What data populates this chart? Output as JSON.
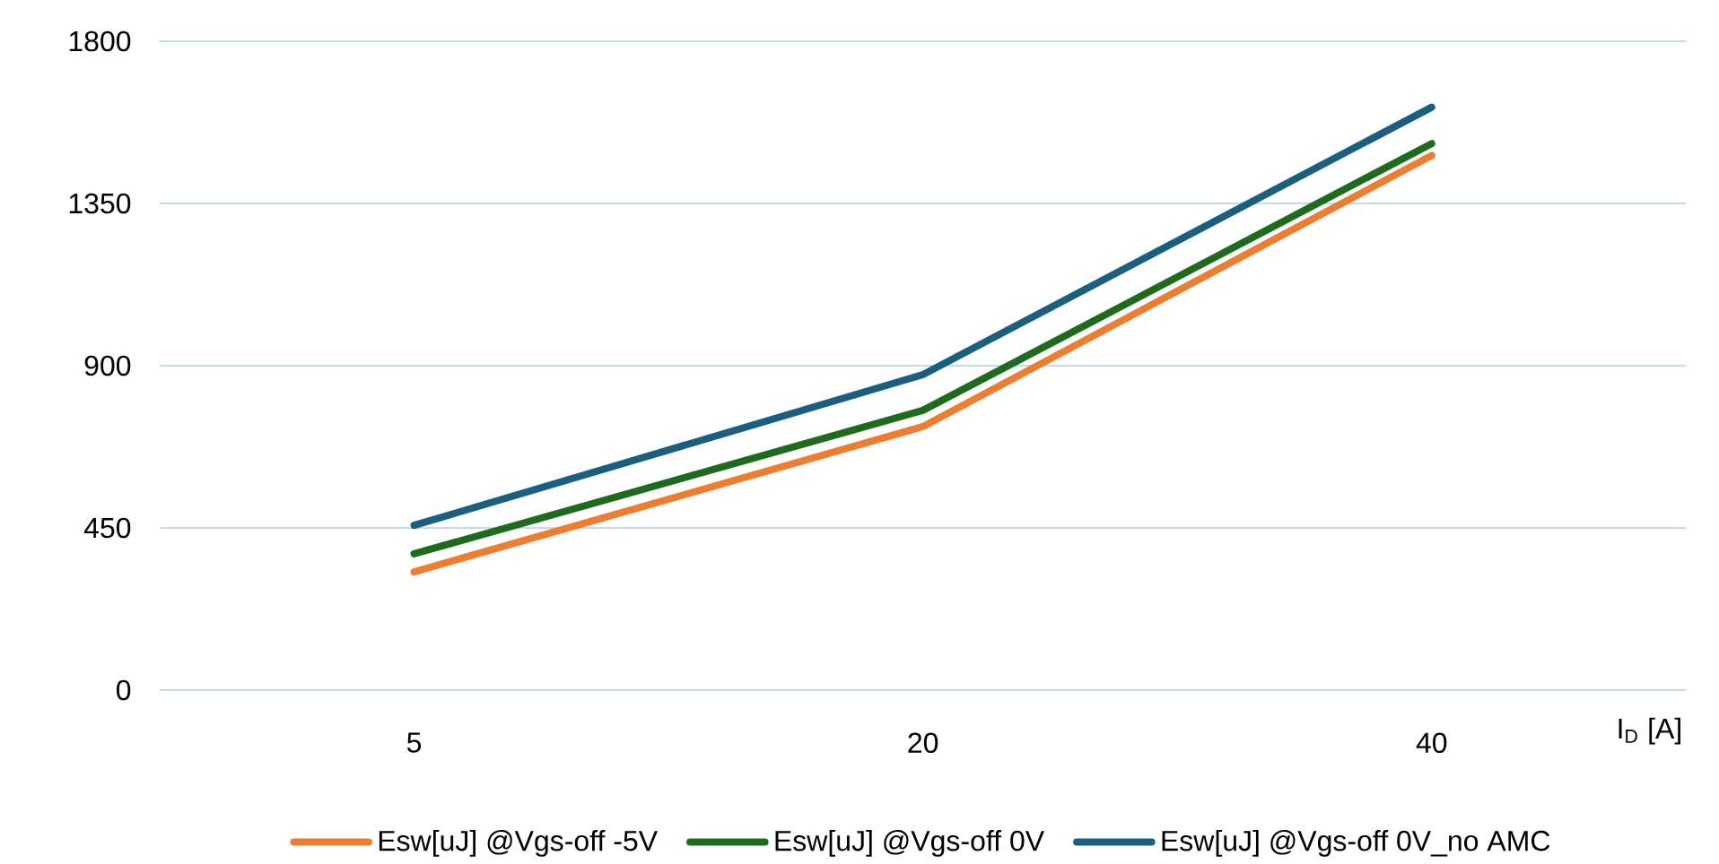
{
  "chart_data": {
    "type": "line",
    "xlabel": "I$_{D}$ [A]",
    "categories": [
      "5",
      "20",
      "40"
    ],
    "series": [
      {
        "name": "Esw[uJ] @Vgs-off -5V",
        "color": "#ed7d31",
        "values": [
          328,
          731,
          1483
        ]
      },
      {
        "name": "Esw[uJ] @Vgs-off 0V",
        "color": "#1e6b1e",
        "values": [
          378,
          776,
          1516
        ]
      },
      {
        "name": "Esw[uJ] @Vgs-off 0V_no AMC",
        "color": "#1a5e80",
        "values": [
          457,
          875,
          1617
        ]
      }
    ],
    "ylim": [
      0,
      1800
    ],
    "yticks": [
      0,
      450,
      900,
      1350,
      1800
    ],
    "grid": "y",
    "legend": "bottom",
    "marker": "none",
    "line_style": "solid"
  }
}
